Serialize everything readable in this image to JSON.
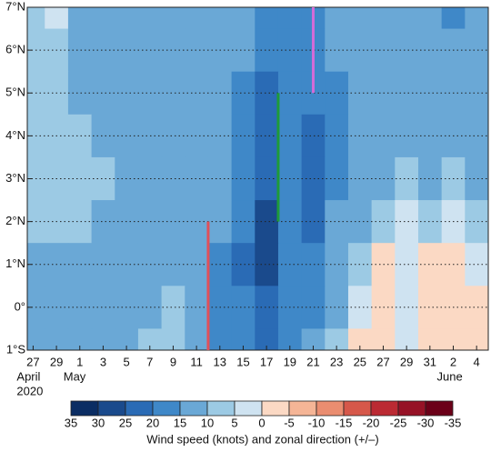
{
  "chart_data": {
    "type": "contour",
    "x": [
      0,
      2,
      4,
      6,
      8,
      10,
      12,
      14,
      16,
      18,
      20,
      22,
      24,
      26,
      28,
      30,
      32,
      34,
      36,
      38
    ],
    "y": [
      7,
      6,
      5,
      4,
      3,
      2,
      1,
      0,
      -1
    ],
    "z": [
      [
        8,
        3,
        12,
        12,
        12,
        12,
        12,
        12,
        12,
        13,
        17,
        17,
        17,
        14,
        12,
        12,
        12,
        12,
        17,
        12
      ],
      [
        8,
        8,
        12,
        12,
        12,
        12,
        12,
        12,
        13,
        14,
        18,
        18,
        17,
        14,
        12,
        12,
        12,
        12,
        14,
        12
      ],
      [
        8,
        8,
        12,
        12,
        12,
        12,
        12,
        12,
        13,
        16,
        22,
        18,
        18,
        16,
        12,
        12,
        12,
        12,
        12,
        12
      ],
      [
        8,
        8,
        8,
        12,
        12,
        12,
        12,
        12,
        13,
        17,
        22,
        19,
        22,
        17,
        12,
        12,
        12,
        12,
        12,
        12
      ],
      [
        8,
        8,
        8,
        8,
        12,
        12,
        12,
        12,
        12,
        18,
        22,
        19,
        22,
        17,
        12,
        12,
        8,
        12,
        8,
        12
      ],
      [
        8,
        8,
        8,
        12,
        12,
        12,
        12,
        12,
        14,
        18,
        27,
        19,
        22,
        14,
        12,
        8,
        4,
        8,
        3,
        8
      ],
      [
        12,
        12,
        12,
        12,
        12,
        12,
        12,
        12,
        17,
        22,
        27,
        18,
        18,
        14,
        8,
        -2,
        4,
        -2,
        -3,
        3
      ],
      [
        12,
        12,
        12,
        12,
        12,
        12,
        8,
        12,
        18,
        19,
        22,
        18,
        18,
        12,
        3,
        -3,
        4,
        -3,
        -4,
        -2
      ],
      [
        12,
        12,
        12,
        12,
        12,
        8,
        8,
        12,
        18,
        19,
        22,
        18,
        14,
        8,
        -2,
        -3,
        4,
        -2,
        -4,
        -2
      ]
    ],
    "xlim": [
      -0.5,
      39
    ],
    "ylim": [
      -1,
      7
    ],
    "xticks": [
      {
        "value": 0,
        "label": "27"
      },
      {
        "value": 2,
        "label": "29"
      },
      {
        "value": 4,
        "label": "1"
      },
      {
        "value": 6,
        "label": "3"
      },
      {
        "value": 8,
        "label": "5"
      },
      {
        "value": 10,
        "label": "7"
      },
      {
        "value": 12,
        "label": "9"
      },
      {
        "value": 14,
        "label": "11"
      },
      {
        "value": 16,
        "label": "13"
      },
      {
        "value": 18,
        "label": "15"
      },
      {
        "value": 20,
        "label": "17"
      },
      {
        "value": 22,
        "label": "19"
      },
      {
        "value": 24,
        "label": "21"
      },
      {
        "value": 26,
        "label": "23"
      },
      {
        "value": 28,
        "label": "25"
      },
      {
        "value": 30,
        "label": "27"
      },
      {
        "value": 32,
        "label": "29"
      },
      {
        "value": 34,
        "label": "31"
      },
      {
        "value": 36,
        "label": "2"
      },
      {
        "value": 38,
        "label": "4"
      }
    ],
    "month_labels": [
      {
        "value": 0,
        "label": "April"
      },
      {
        "value": 4,
        "label": "May"
      },
      {
        "value": 36,
        "label": "June"
      }
    ],
    "year_label": {
      "value": 0,
      "label": "2020"
    },
    "yticks": [
      {
        "value": -1,
        "label": "1°S"
      },
      {
        "value": 0,
        "label": "0°"
      },
      {
        "value": 1,
        "label": "1°N"
      },
      {
        "value": 2,
        "label": "2°N"
      },
      {
        "value": 3,
        "label": "3°N"
      },
      {
        "value": 4,
        "label": "4°N"
      },
      {
        "value": 5,
        "label": "5°N"
      },
      {
        "value": 6,
        "label": "6°N"
      },
      {
        "value": 7,
        "label": "7°N"
      }
    ],
    "grid": true,
    "lines": [
      {
        "color": "#e0505a",
        "x": 15,
        "y": [
          -1,
          2
        ]
      },
      {
        "color": "#1f9a3a",
        "x": 21,
        "y": [
          2,
          5
        ]
      },
      {
        "color": "#d36bd8",
        "x": 24,
        "y": [
          5,
          7
        ]
      }
    ],
    "levels": [
      35,
      30,
      25,
      20,
      15,
      10,
      5,
      0,
      -5,
      -10,
      -15,
      -20,
      -25,
      -30,
      -35
    ],
    "colors": [
      "#0b2d63",
      "#1a4a8c",
      "#2a6bb5",
      "#3f88c8",
      "#6aa8d6",
      "#9ccae4",
      "#cfe3f1",
      "#fbd9c4",
      "#f5b596",
      "#ea8d70",
      "#d6584a",
      "#bb2a33",
      "#961226",
      "#6b0018"
    ],
    "colorbar_label": "Wind speed (knots) and zonal direction (+/–)"
  }
}
